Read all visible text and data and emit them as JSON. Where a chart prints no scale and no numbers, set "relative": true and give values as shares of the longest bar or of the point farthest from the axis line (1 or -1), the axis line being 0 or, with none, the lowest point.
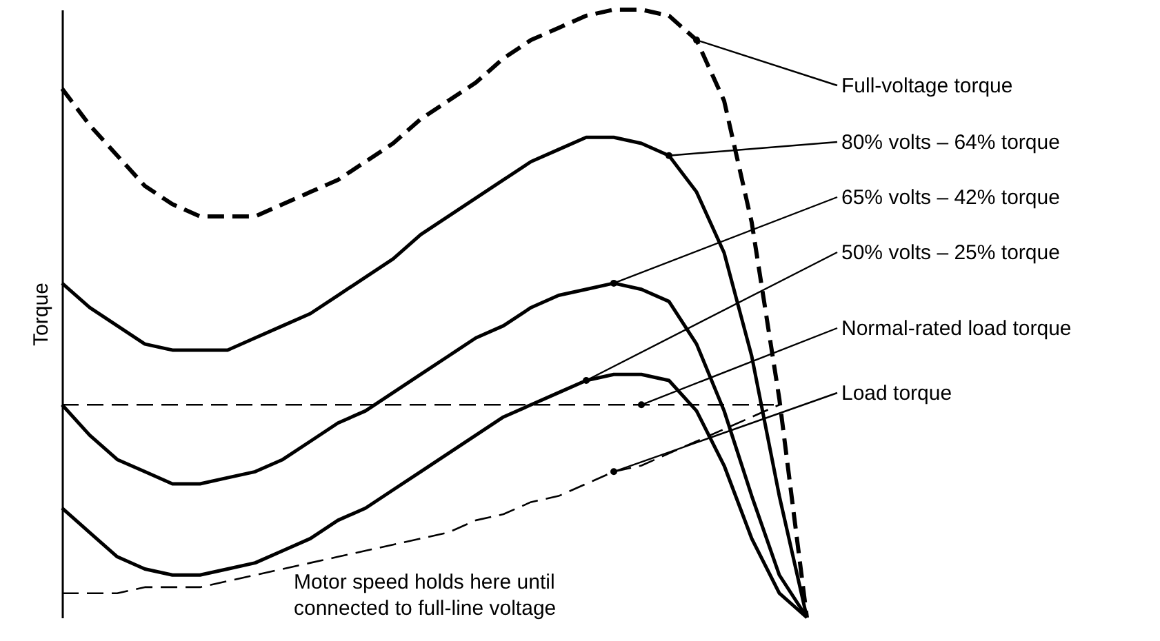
{
  "chart_data": {
    "type": "line",
    "relative": true,
    "ylabel": "Torque",
    "grid": false,
    "categories": [
      null,
      null,
      null,
      null,
      null,
      null,
      null,
      null,
      null,
      null,
      null,
      null,
      null,
      null,
      null,
      null,
      null,
      null,
      null,
      null,
      null,
      null,
      null,
      null,
      null,
      null,
      null,
      null
    ],
    "series": [
      {
        "name": "Full-voltage torque",
        "color": "#000000",
        "line_style": "dashed",
        "values": [
          0.87,
          0.81,
          0.76,
          0.71,
          0.68,
          0.66,
          0.66,
          0.66,
          0.68,
          0.7,
          0.72,
          0.75,
          0.78,
          0.82,
          0.85,
          0.88,
          0.92,
          0.95,
          0.97,
          0.99,
          1.0,
          1.0,
          0.99,
          0.95,
          0.85,
          0.65,
          0.36,
          0
        ]
      },
      {
        "name": "80% volts – 64% torque",
        "color": "#000000",
        "line_style": "solid",
        "values": [
          0.55,
          0.51,
          0.48,
          0.45,
          0.44,
          0.44,
          0.44,
          0.46,
          0.48,
          0.5,
          0.53,
          0.56,
          0.59,
          0.63,
          0.66,
          0.69,
          0.72,
          0.75,
          0.77,
          0.79,
          0.79,
          0.78,
          0.76,
          0.7,
          0.6,
          0.43,
          0.2,
          0
        ]
      },
      {
        "name": "65% volts – 42% torque",
        "color": "#000000",
        "line_style": "solid",
        "values": [
          0.35,
          0.3,
          0.26,
          0.24,
          0.22,
          0.22,
          0.23,
          0.24,
          0.26,
          0.29,
          0.32,
          0.34,
          0.37,
          0.4,
          0.43,
          0.46,
          0.48,
          0.51,
          0.53,
          0.54,
          0.55,
          0.54,
          0.52,
          0.45,
          0.34,
          0.2,
          0.07,
          0
        ]
      },
      {
        "name": "50% volts – 25% torque",
        "color": "#000000",
        "line_style": "solid",
        "values": [
          0.18,
          0.14,
          0.1,
          0.08,
          0.07,
          0.07,
          0.08,
          0.09,
          0.11,
          0.13,
          0.16,
          0.18,
          0.21,
          0.24,
          0.27,
          0.3,
          0.33,
          0.35,
          0.37,
          0.39,
          0.4,
          0.4,
          0.39,
          0.34,
          0.25,
          0.13,
          0.04,
          0
        ]
      },
      {
        "name": "Normal-rated load torque",
        "color": "#000000",
        "line_style": "dashed",
        "values": [
          0.35,
          0.35,
          0.35,
          0.35,
          0.35,
          0.35,
          0.35,
          0.35,
          0.35,
          0.35,
          0.35,
          0.35,
          0.35,
          0.35,
          0.35,
          0.35,
          0.35,
          0.35,
          0.35,
          0.35,
          0.35,
          0.35,
          0.35,
          0.35,
          0.35,
          0.35,
          0.35,
          null
        ]
      },
      {
        "name": "Load torque",
        "color": "#000000",
        "line_style": "dashed",
        "values": [
          0.04,
          0.04,
          0.04,
          0.05,
          0.05,
          0.05,
          0.06,
          0.07,
          0.08,
          0.09,
          0.1,
          0.11,
          0.12,
          0.13,
          0.14,
          0.16,
          0.17,
          0.19,
          0.2,
          0.22,
          0.24,
          0.25,
          0.27,
          0.29,
          0.31,
          0.33,
          0.35,
          null
        ]
      }
    ],
    "annotations": [
      "Motor speed holds here until connected to full-line voltage"
    ]
  }
}
